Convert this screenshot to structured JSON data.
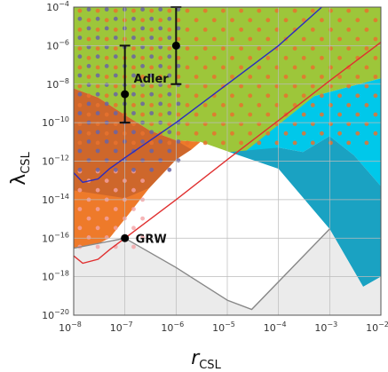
{
  "chart_data": {
    "type": "area",
    "title": "",
    "xlabel": {
      "base": "r",
      "sub": "CSL"
    },
    "ylabel": {
      "base": "λ",
      "sub": "CSL"
    },
    "x_scale": "log",
    "y_scale": "log",
    "xlim": [
      1e-08,
      0.01
    ],
    "ylim": [
      1e-20,
      0.0001
    ],
    "grid": true,
    "x_ticks": [
      {
        "base": "10",
        "exp": "−8"
      },
      {
        "base": "10",
        "exp": "−7"
      },
      {
        "base": "10",
        "exp": "−6"
      },
      {
        "base": "10",
        "exp": "−5"
      },
      {
        "base": "10",
        "exp": "−4"
      },
      {
        "base": "10",
        "exp": "−3"
      },
      {
        "base": "10",
        "exp": "−2"
      }
    ],
    "y_ticks": [
      {
        "base": "10",
        "exp": "−20"
      },
      {
        "base": "10",
        "exp": "−18"
      },
      {
        "base": "10",
        "exp": "−16"
      },
      {
        "base": "10",
        "exp": "−14"
      },
      {
        "base": "10",
        "exp": "−12"
      },
      {
        "base": "10",
        "exp": "−10"
      },
      {
        "base": "10",
        "exp": "−8"
      },
      {
        "base": "10",
        "exp": "−6"
      },
      {
        "base": "10",
        "exp": "−4"
      }
    ],
    "points": [
      {
        "label": "GRW",
        "x": 1e-07,
        "y": 1e-16
      },
      {
        "label": "Adler",
        "x": 1e-07,
        "y": 3e-09,
        "y_err": [
          1e-10,
          1e-06
        ]
      },
      {
        "label": "",
        "x": 1e-06,
        "y": 1e-06,
        "y_err": [
          1e-08,
          0.0001
        ]
      }
    ],
    "regions": [
      {
        "color": "#9dc63a",
        "points": [
          [
            1e-08,
            0.0001
          ],
          [
            0.01,
            0.0001
          ],
          [
            0.01,
            2e-08
          ],
          [
            0.0005,
            2.4e-09
          ],
          [
            0.0001,
            4e-11
          ],
          [
            2e-05,
            2.5e-12
          ],
          [
            1.1e-05,
            3e-12
          ],
          [
            3e-06,
            1e-11
          ],
          [
            1e-06,
            1.2e-11
          ],
          [
            3e-07,
            4e-11
          ],
          [
            1e-07,
            2.5e-10
          ],
          [
            3e-08,
            2e-09
          ],
          [
            1e-08,
            6e-09
          ]
        ]
      },
      {
        "color": "#00c8ea",
        "points": [
          [
            0.0005,
            2.4e-09
          ],
          [
            0.01,
            2e-08
          ],
          [
            0.01,
            5e-14
          ],
          [
            0.003,
            2e-12
          ],
          [
            0.001,
            2e-11
          ],
          [
            0.0003,
            3e-12
          ],
          [
            0.0001,
            5e-12
          ],
          [
            2e-05,
            2.5e-12
          ]
        ]
      },
      {
        "color": "#1aa2c2",
        "points": [
          [
            1.1e-05,
            3e-12
          ],
          [
            0.0001,
            5e-12
          ],
          [
            0.0003,
            3e-12
          ],
          [
            0.001,
            2e-11
          ],
          [
            0.003,
            2e-12
          ],
          [
            0.01,
            5e-14
          ],
          [
            0.01,
            1e-18
          ],
          [
            0.0045,
            3e-19
          ],
          [
            0.001,
            3e-16
          ],
          [
            0.0001,
            4e-13
          ]
        ]
      },
      {
        "color": "#ee7a2a",
        "points": [
          [
            1e-08,
            6e-09
          ],
          [
            3e-08,
            2e-09
          ],
          [
            1e-07,
            2.5e-10
          ],
          [
            3e-07,
            4e-11
          ],
          [
            1e-06,
            1.2e-11
          ],
          [
            3e-06,
            1e-11
          ],
          [
            2e-06,
            4e-12
          ],
          [
            1e-06,
            1.2e-12
          ],
          [
            3e-07,
            4e-14
          ],
          [
            1e-07,
            1e-15
          ],
          [
            5e-08,
            1e-16
          ],
          [
            2.5e-08,
            4e-17
          ],
          [
            1e-08,
            3e-17
          ]
        ]
      },
      {
        "color": "#ebebeb",
        "points": [
          [
            1e-08,
            3e-17
          ],
          [
            1e-07,
            1e-16
          ],
          [
            1e-06,
            3e-18
          ],
          [
            1e-05,
            6e-20
          ],
          [
            3e-05,
            2e-20
          ],
          [
            0.001,
            3e-16
          ],
          [
            0.0045,
            3e-19
          ],
          [
            0.01,
            1e-18
          ],
          [
            0.01,
            1e-20
          ],
          [
            1e-08,
            1e-20
          ]
        ]
      }
    ],
    "curves": [
      {
        "color": "#2a2cc0",
        "points": [
          [
            1e-08,
            2.5e-13
          ],
          [
            1.5e-08,
            8e-14
          ],
          [
            3e-08,
            1.2e-13
          ],
          [
            5e-08,
            4e-13
          ],
          [
            1e-07,
            1.5e-12
          ],
          [
            1e-06,
            1e-10
          ],
          [
            1e-05,
            1e-08
          ],
          [
            0.0001,
            1e-06
          ],
          [
            0.0007,
            0.0001
          ]
        ]
      },
      {
        "color": "#e03030",
        "points": [
          [
            1e-08,
            1.2e-17
          ],
          [
            1.5e-08,
            5e-18
          ],
          [
            3e-08,
            8e-18
          ],
          [
            5e-08,
            2.5e-17
          ],
          [
            1e-07,
            1e-16
          ],
          [
            1e-06,
            1e-14
          ],
          [
            1e-05,
            1.2e-12
          ],
          [
            0.0001,
            1.3e-10
          ],
          [
            0.001,
            1.5e-08
          ],
          [
            0.01,
            1.5e-06
          ]
        ]
      },
      {
        "color": "#888888",
        "points": [
          [
            1e-08,
            3e-17
          ],
          [
            1e-07,
            1e-16
          ],
          [
            1e-06,
            3e-18
          ],
          [
            1e-05,
            6e-20
          ],
          [
            3e-05,
            2e-20
          ],
          [
            0.001,
            3e-16
          ]
        ]
      }
    ],
    "dots": [
      {
        "color": "#f4a3a5",
        "opacity": 0.8,
        "xr": [
          -8,
          -6.6
        ],
        "yr": [
          -16.6,
          -12.2
        ],
        "step": 0.35
      },
      {
        "color": "#e8722e",
        "opacity": 0.85,
        "xr": [
          -8,
          -2.1
        ],
        "yr": [
          -11.2,
          -4.1
        ],
        "step": 0.35
      },
      {
        "color": "#6a64a4",
        "opacity": 0.85,
        "xr": [
          -8,
          -5.9
        ],
        "yr": [
          -12.6,
          -4.1
        ],
        "step": 0.35
      }
    ]
  }
}
